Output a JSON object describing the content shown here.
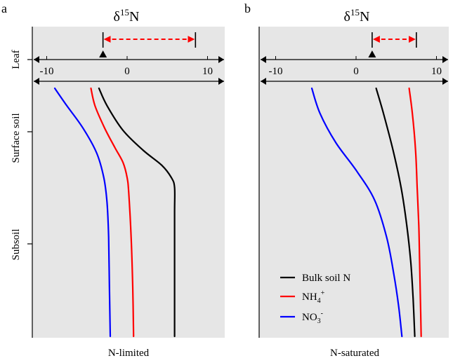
{
  "figure": {
    "left_y_labels": [
      "Leaf",
      "Surface soil",
      "Subsoil"
    ],
    "legend": {
      "entries": [
        {
          "series": "bulk",
          "label": "Bulk soil N",
          "color": "#000000"
        },
        {
          "series": "nh4",
          "label": "NH",
          "sub": "4",
          "sup": "+",
          "color": "#ff0000"
        },
        {
          "series": "no3",
          "label": "NO",
          "sub": "3",
          "sup": "-",
          "color": "#0000ff"
        }
      ]
    }
  },
  "chart_data": [
    {
      "panel_letter": "a",
      "type": "line",
      "title_prefix": "δ",
      "title_sup": "15",
      "title_suffix": "N",
      "xlabel": "N-limited",
      "xlim": [
        -12,
        12
      ],
      "x_ticks": [
        -10,
        0,
        10
      ],
      "x_tick_labels": [
        "-10",
        "0",
        "10"
      ],
      "depth_axis": "relative depth from surface (0) to bottom (1)",
      "leaf": {
        "marker_value": -3,
        "range": [
          -3,
          8.5
        ]
      },
      "series": [
        {
          "name": "Bulk soil N",
          "key": "bulk",
          "color": "#000000",
          "points": [
            [
              -3.5,
              0.0
            ],
            [
              -2.5,
              0.07
            ],
            [
              -0.5,
              0.17
            ],
            [
              2,
              0.25
            ],
            [
              4.3,
              0.31
            ],
            [
              5.5,
              0.36
            ],
            [
              5.9,
              0.4
            ],
            [
              5.9,
              0.5
            ],
            [
              5.9,
              0.7
            ],
            [
              5.9,
              1.0
            ]
          ]
        },
        {
          "name": "NH4+",
          "key": "nh4",
          "color": "#ff0000",
          "points": [
            [
              -4.5,
              0.0
            ],
            [
              -4,
              0.07
            ],
            [
              -2.8,
              0.16
            ],
            [
              -1.5,
              0.24
            ],
            [
              -0.5,
              0.3
            ],
            [
              0,
              0.36
            ],
            [
              0.2,
              0.42
            ],
            [
              0.5,
              0.6
            ],
            [
              0.7,
              0.8
            ],
            [
              0.8,
              1.0
            ]
          ]
        },
        {
          "name": "NO3-",
          "key": "no3",
          "color": "#0000ff",
          "points": [
            [
              -9,
              0.0
            ],
            [
              -7.5,
              0.07
            ],
            [
              -5.5,
              0.16
            ],
            [
              -3.8,
              0.26
            ],
            [
              -2.9,
              0.36
            ],
            [
              -2.5,
              0.46
            ],
            [
              -2.3,
              0.6
            ],
            [
              -2.2,
              0.8
            ],
            [
              -2.1,
              1.0
            ]
          ]
        }
      ]
    },
    {
      "panel_letter": "b",
      "type": "line",
      "title_prefix": "δ",
      "title_sup": "15",
      "title_suffix": "N",
      "xlabel": "N-saturated",
      "xlim": [
        -12,
        12
      ],
      "x_ticks": [
        -10,
        0,
        10
      ],
      "x_tick_labels": [
        "-10",
        "0",
        "10"
      ],
      "depth_axis": "relative depth from surface (0) to bottom (1)",
      "leaf": {
        "marker_value": 2,
        "range": [
          2,
          7.5
        ]
      },
      "series": [
        {
          "name": "Bulk soil N",
          "key": "bulk",
          "color": "#000000",
          "points": [
            [
              2.5,
              0.0
            ],
            [
              3.4,
              0.1
            ],
            [
              4.6,
              0.25
            ],
            [
              5.6,
              0.4
            ],
            [
              6.3,
              0.55
            ],
            [
              6.8,
              0.7
            ],
            [
              7.1,
              0.85
            ],
            [
              7.3,
              1.0
            ]
          ]
        },
        {
          "name": "NH4+",
          "key": "nh4",
          "color": "#ff0000",
          "points": [
            [
              6.6,
              0.0
            ],
            [
              7.0,
              0.1
            ],
            [
              7.4,
              0.25
            ],
            [
              7.6,
              0.4
            ],
            [
              7.8,
              0.55
            ],
            [
              7.9,
              0.7
            ],
            [
              8.0,
              0.85
            ],
            [
              8.1,
              1.0
            ]
          ]
        },
        {
          "name": "NO3-",
          "key": "no3",
          "color": "#0000ff",
          "points": [
            [
              -5.5,
              0.0
            ],
            [
              -4.5,
              0.1
            ],
            [
              -2.5,
              0.22
            ],
            [
              0,
              0.33
            ],
            [
              2.3,
              0.45
            ],
            [
              3.8,
              0.6
            ],
            [
              4.7,
              0.75
            ],
            [
              5.3,
              0.88
            ],
            [
              5.7,
              1.0
            ]
          ]
        }
      ]
    }
  ]
}
